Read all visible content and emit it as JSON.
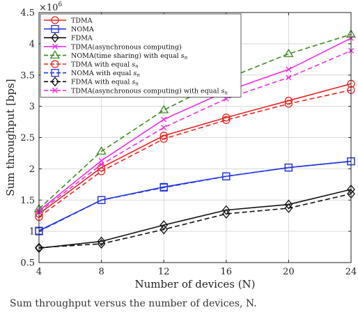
{
  "chart_data": {
    "type": "line",
    "title": "",
    "xlabel": "Number of devices (N)",
    "ylabel": "Sum throughput [bps]",
    "y_multiplier": "×10",
    "y_multiplier_exp": "6",
    "x": [
      4,
      8,
      12,
      16,
      20,
      24
    ],
    "xlim": [
      4,
      24
    ],
    "ylim": [
      0.5,
      4.5
    ],
    "xticks": [
      4,
      8,
      12,
      16,
      20,
      24
    ],
    "yticks": [
      0.5,
      1,
      1.5,
      2,
      2.5,
      3,
      3.5,
      4,
      4.5
    ],
    "ytick_labels": [
      "0.5",
      "1",
      "1.5",
      "2",
      "2.5",
      "3",
      "3.5",
      "4",
      "4.5"
    ],
    "grid": true,
    "legend_position": "top-left",
    "series": [
      {
        "name": "TDMA",
        "values": [
          1.28,
          2.02,
          2.53,
          2.82,
          3.09,
          3.36
        ],
        "color": "#e8221f",
        "dash": "solid",
        "marker": "circle"
      },
      {
        "name": "NOMA",
        "values": [
          1.01,
          1.5,
          1.71,
          1.88,
          2.02,
          2.12
        ],
        "color": "#1f34e0",
        "dash": "solid",
        "marker": "square"
      },
      {
        "name": "FDMA",
        "values": [
          0.73,
          0.84,
          1.1,
          1.34,
          1.43,
          1.67
        ],
        "color": "#111111",
        "dash": "solid",
        "marker": "diamond"
      },
      {
        "name": "TDMA(asynchronous computing)",
        "values": [
          1.33,
          2.13,
          2.79,
          3.24,
          3.59,
          4.09
        ],
        "color": "#ee2de6",
        "dash": "solid",
        "marker": "x"
      },
      {
        "name": "NOMA(time sharing) with equal s_n",
        "values": [
          1.36,
          2.28,
          2.94,
          3.44,
          3.84,
          4.15
        ],
        "color": "#3a8a1f",
        "dash": "dashed",
        "marker": "triangle"
      },
      {
        "name": "TDMA with equal s_n",
        "values": [
          1.23,
          1.96,
          2.48,
          2.78,
          3.04,
          3.26
        ],
        "color": "#e8221f",
        "dash": "dashed",
        "marker": "circle"
      },
      {
        "name": "NOMA with equal s_n",
        "values": [
          1.0,
          1.5,
          1.7,
          1.88,
          2.02,
          2.12
        ],
        "color": "#1f34e0",
        "dash": "dashed",
        "marker": "square"
      },
      {
        "name": "FDMA with equal s_n",
        "values": [
          0.74,
          0.8,
          1.03,
          1.28,
          1.37,
          1.6
        ],
        "color": "#111111",
        "dash": "dashed",
        "marker": "diamond"
      },
      {
        "name": "TDMA(asynchronous computing) with equal s_n",
        "values": [
          1.31,
          2.07,
          2.66,
          3.12,
          3.46,
          3.89
        ],
        "color": "#ee2de6",
        "dash": "dashed",
        "marker": "x"
      }
    ]
  },
  "caption": "Sum throughput versus the number of devices, N."
}
